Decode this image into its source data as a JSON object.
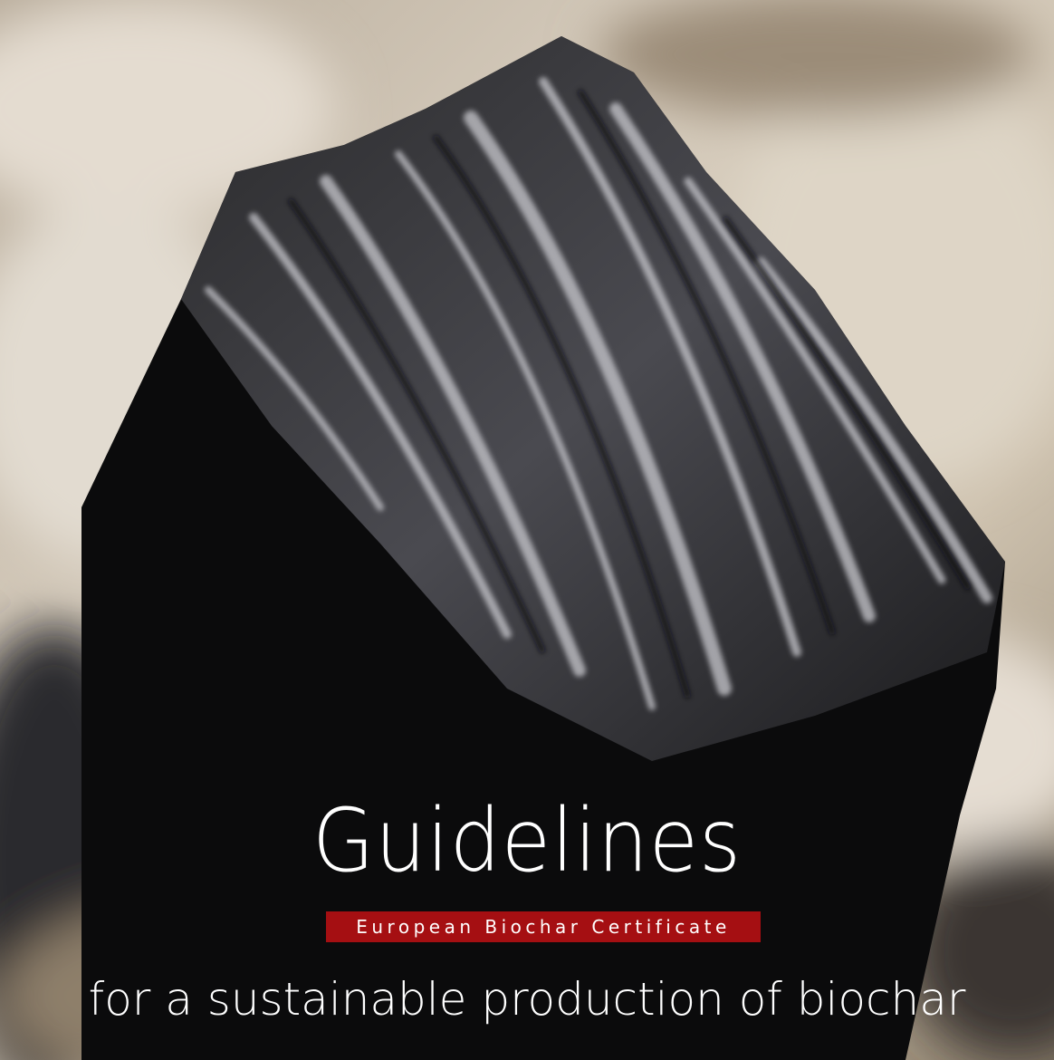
{
  "cover": {
    "title": "Guidelines",
    "banner": "European Biochar Certificate",
    "subtitle": "for a sustainable production of biochar"
  }
}
